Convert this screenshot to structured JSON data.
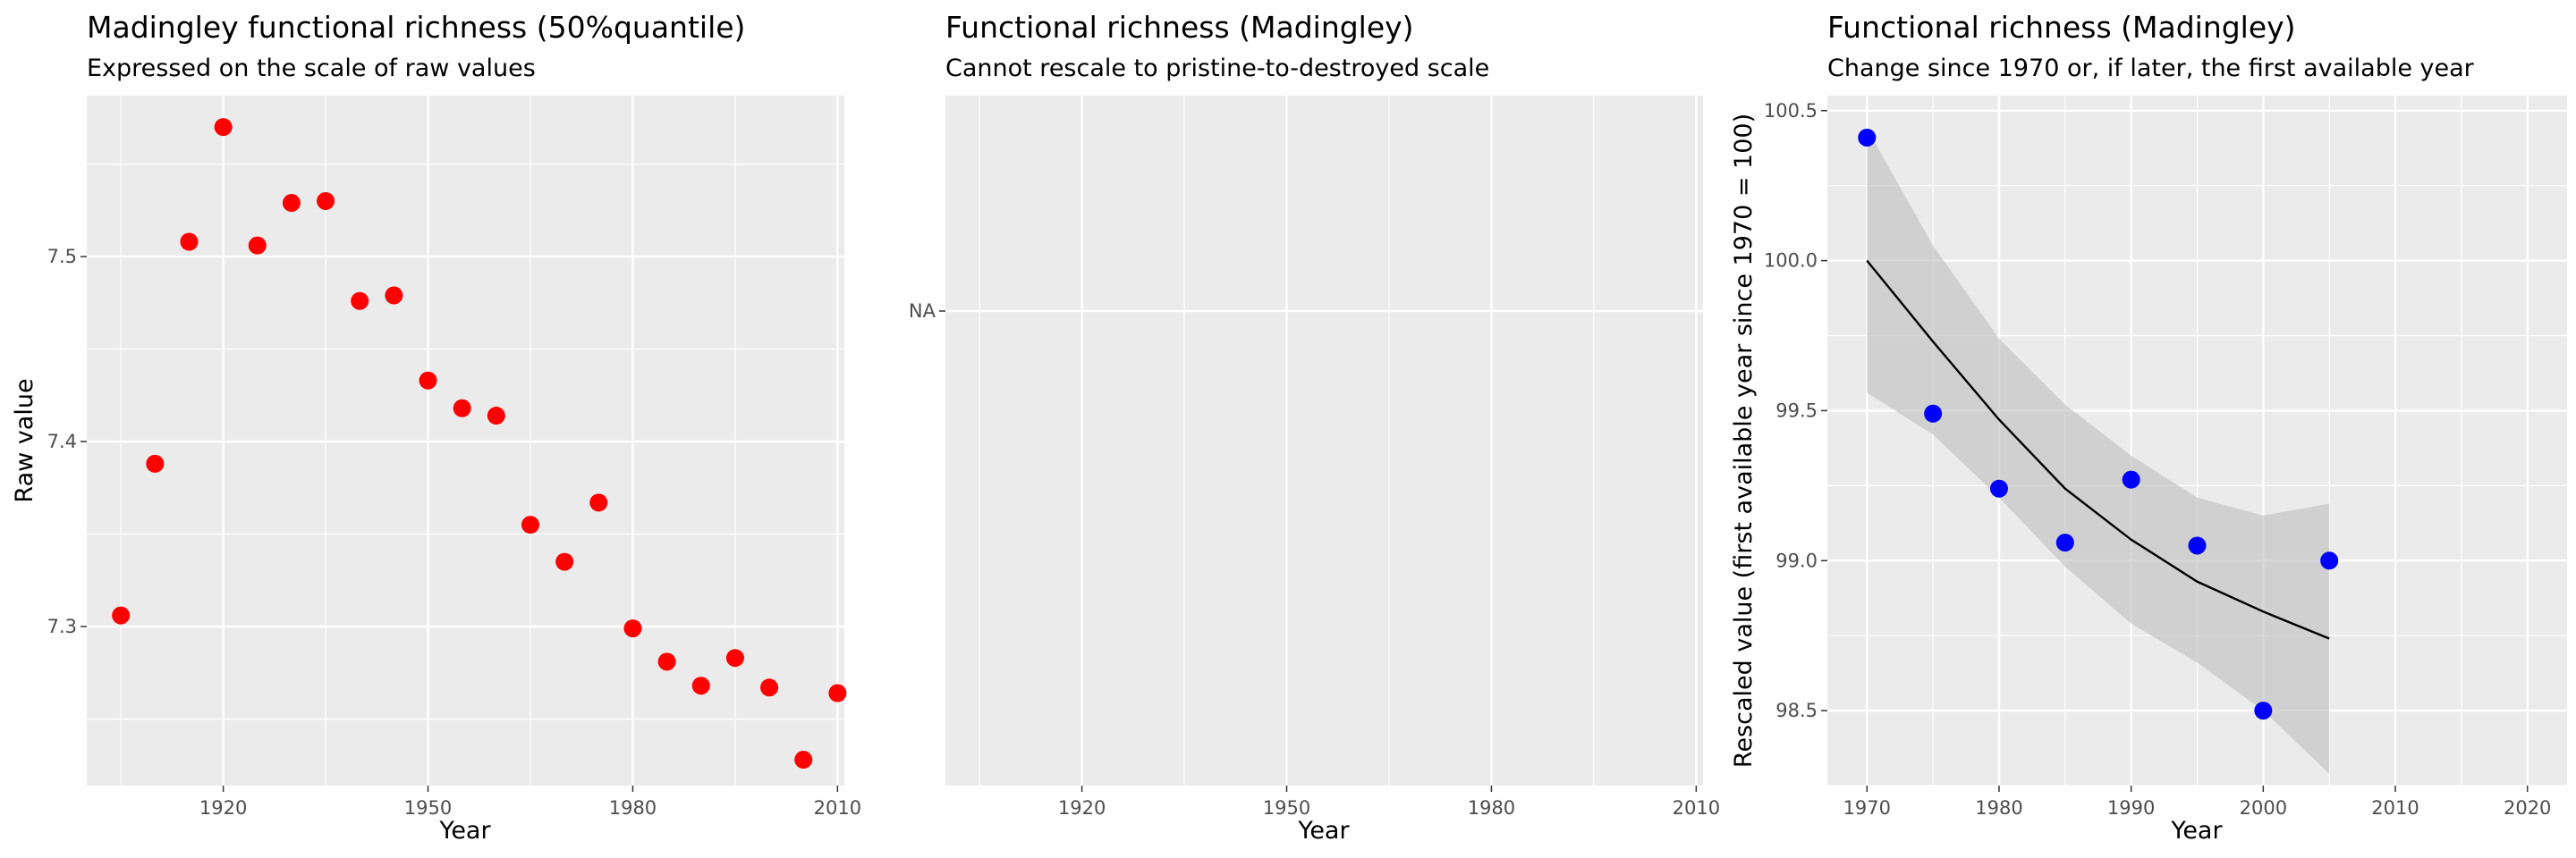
{
  "chart_data": [
    {
      "type": "scatter",
      "title": "Madingley functional richness (50%quantile)",
      "subtitle": "Expressed on the scale of raw values",
      "xlabel": "Year",
      "ylabel": "Raw value",
      "xlim": [
        1900,
        2011
      ],
      "ylim": [
        7.214,
        7.587
      ],
      "x_ticks": [
        1920,
        1950,
        1980,
        2010
      ],
      "x_tick_labels": [
        "1920",
        "1950",
        "1980",
        "2010"
      ],
      "y_ticks": [
        7.3,
        7.4,
        7.5
      ],
      "y_tick_labels": [
        "7.3",
        "7.4",
        "7.5"
      ],
      "grid": true,
      "point_color": "#ff0000",
      "points": [
        {
          "x": 1905,
          "y": 7.306
        },
        {
          "x": 1910,
          "y": 7.388
        },
        {
          "x": 1915,
          "y": 7.508
        },
        {
          "x": 1920,
          "y": 7.57
        },
        {
          "x": 1925,
          "y": 7.506
        },
        {
          "x": 1930,
          "y": 7.529
        },
        {
          "x": 1935,
          "y": 7.53
        },
        {
          "x": 1940,
          "y": 7.476
        },
        {
          "x": 1945,
          "y": 7.479
        },
        {
          "x": 1950,
          "y": 7.433
        },
        {
          "x": 1955,
          "y": 7.418
        },
        {
          "x": 1960,
          "y": 7.414
        },
        {
          "x": 1965,
          "y": 7.355
        },
        {
          "x": 1970,
          "y": 7.335
        },
        {
          "x": 1975,
          "y": 7.367
        },
        {
          "x": 1980,
          "y": 7.299
        },
        {
          "x": 1985,
          "y": 7.281
        },
        {
          "x": 1990,
          "y": 7.268
        },
        {
          "x": 1995,
          "y": 7.283
        },
        {
          "x": 2000,
          "y": 7.267
        },
        {
          "x": 2005,
          "y": 7.228
        },
        {
          "x": 2010,
          "y": 7.264
        }
      ]
    },
    {
      "type": "scatter",
      "title": "Functional richness (Madingley)",
      "subtitle": "Cannot rescale to pristine-to-destroyed scale",
      "xlabel": "Year",
      "ylabel": "",
      "xlim": [
        1900,
        2011
      ],
      "x_ticks": [
        1920,
        1950,
        1980,
        2010
      ],
      "x_tick_labels": [
        "1920",
        "1950",
        "1980",
        "2010"
      ],
      "y_tick_labels": [
        "NA"
      ],
      "grid": true,
      "points": []
    },
    {
      "type": "scatter",
      "title": "Functional richness (Madingley)",
      "subtitle": "Change since 1970 or, if later, the first available year",
      "xlabel": "Year",
      "ylabel": "Rescaled value (first available year since 1970 = 100)",
      "xlim": [
        1967,
        2023
      ],
      "ylim": [
        98.25,
        100.55
      ],
      "x_ticks": [
        1970,
        1980,
        1990,
        2000,
        2010,
        2020
      ],
      "x_tick_labels": [
        "1970",
        "1980",
        "1990",
        "2000",
        "2010",
        "2020"
      ],
      "y_ticks": [
        98.5,
        99.0,
        99.5,
        100.0,
        100.5
      ],
      "y_tick_labels": [
        "98.5",
        "99.0",
        "99.5",
        "100.0",
        "100.5"
      ],
      "grid": true,
      "point_color": "#0000ff",
      "line_color": "#000000",
      "ribbon_color": "#bebebe",
      "points": [
        {
          "x": 1970,
          "y": 100.41
        },
        {
          "x": 1975,
          "y": 99.49
        },
        {
          "x": 1980,
          "y": 99.24
        },
        {
          "x": 1985,
          "y": 99.06
        },
        {
          "x": 1990,
          "y": 99.27
        },
        {
          "x": 1995,
          "y": 99.05
        },
        {
          "x": 2000,
          "y": 98.5
        },
        {
          "x": 2005,
          "y": 99.0
        }
      ],
      "trend": [
        {
          "x": 1970,
          "y": 100.0,
          "lower": 99.56,
          "upper": 100.44
        },
        {
          "x": 1975,
          "y": 99.73,
          "lower": 99.42,
          "upper": 100.05
        },
        {
          "x": 1980,
          "y": 99.47,
          "lower": 99.21,
          "upper": 99.74
        },
        {
          "x": 1985,
          "y": 99.24,
          "lower": 98.98,
          "upper": 99.52
        },
        {
          "x": 1990,
          "y": 99.07,
          "lower": 98.79,
          "upper": 99.35
        },
        {
          "x": 1995,
          "y": 98.93,
          "lower": 98.66,
          "upper": 99.21
        },
        {
          "x": 2000,
          "y": 98.83,
          "lower": 98.5,
          "upper": 99.15
        },
        {
          "x": 2005,
          "y": 98.74,
          "lower": 98.29,
          "upper": 99.19
        }
      ]
    }
  ]
}
